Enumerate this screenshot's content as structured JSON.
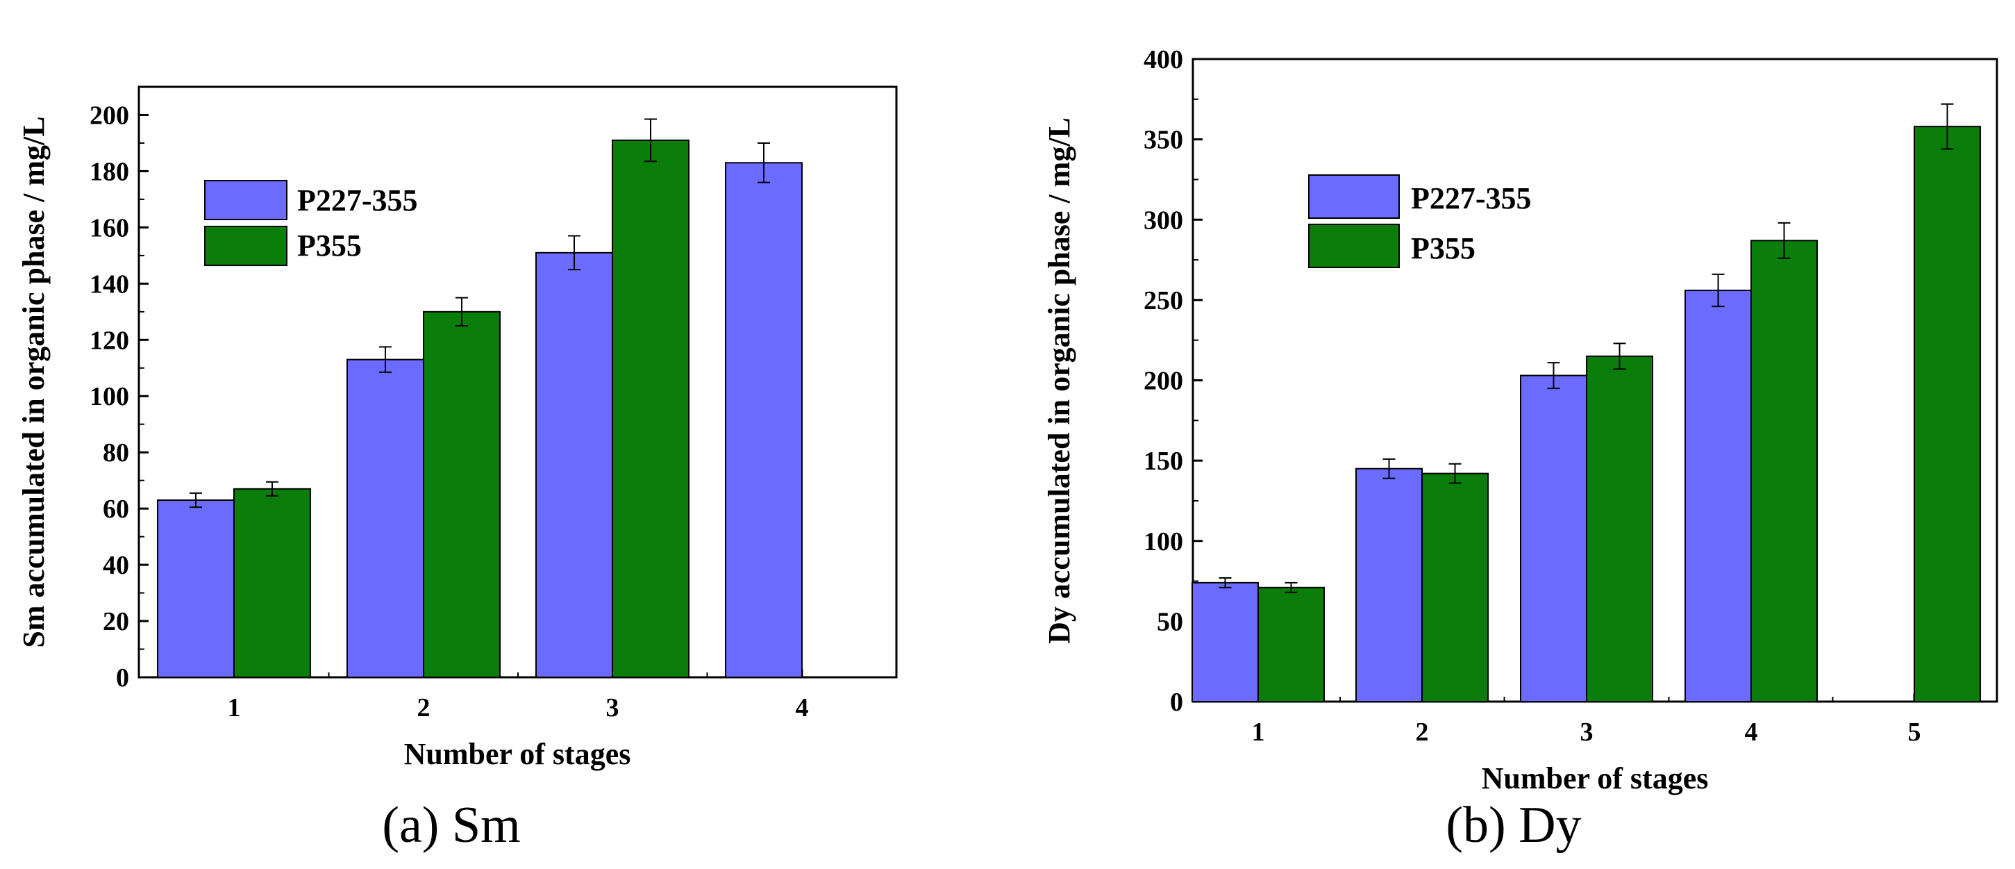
{
  "colors": {
    "series_a": "#6b6bff",
    "series_b": "#0a7d0a",
    "axis": "#000000"
  },
  "chart_data": [
    {
      "type": "bar",
      "title": "",
      "caption": "(a) Sm",
      "xlabel": "Number of stages",
      "ylabel": "Sm accumulated in organic phase / mg/L",
      "categories": [
        "1",
        "2",
        "3",
        "4"
      ],
      "ylim": [
        0,
        210
      ],
      "yticks": [
        0,
        20,
        40,
        60,
        80,
        100,
        120,
        140,
        160,
        180,
        200
      ],
      "legend_position": "top-left",
      "series": [
        {
          "name": "P227-355",
          "values": [
            63,
            113,
            151,
            183
          ],
          "errors": [
            2.5,
            4.5,
            6,
            7
          ]
        },
        {
          "name": "P355",
          "values": [
            67,
            130,
            191,
            null
          ],
          "errors": [
            2.5,
            5,
            7.5,
            null
          ]
        }
      ]
    },
    {
      "type": "bar",
      "title": "",
      "caption": "(b) Dy",
      "xlabel": "Number of stages",
      "ylabel": "Dy accumulated in organic phase / mg/L",
      "categories": [
        "1",
        "2",
        "3",
        "4",
        "5"
      ],
      "ylim": [
        0,
        400
      ],
      "yticks": [
        0,
        50,
        100,
        150,
        200,
        250,
        300,
        350,
        400
      ],
      "legend_position": "top-left",
      "series": [
        {
          "name": "P227-355",
          "values": [
            74,
            145,
            203,
            256,
            null
          ],
          "errors": [
            3,
            6,
            8,
            10,
            null
          ]
        },
        {
          "name": "P355",
          "values": [
            71,
            142,
            215,
            287,
            358
          ],
          "errors": [
            3,
            6,
            8,
            11,
            14
          ]
        }
      ]
    }
  ]
}
